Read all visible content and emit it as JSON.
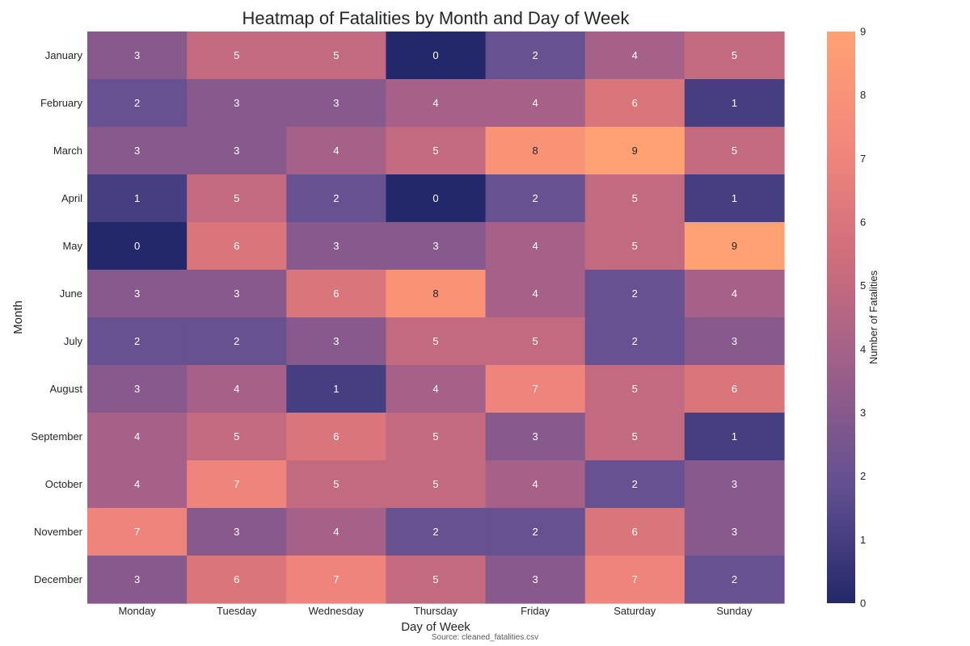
{
  "chart_data": {
    "type": "heatmap",
    "title": "Heatmap of Fatalities by Month and Day of Week",
    "xlabel": "Day of Week",
    "ylabel": "Month",
    "x": [
      "Monday",
      "Tuesday",
      "Wednesday",
      "Thursday",
      "Friday",
      "Saturday",
      "Sunday"
    ],
    "y": [
      "January",
      "February",
      "March",
      "April",
      "May",
      "June",
      "July",
      "August",
      "September",
      "October",
      "November",
      "December"
    ],
    "values": [
      [
        3,
        5,
        5,
        0,
        2,
        4,
        5
      ],
      [
        2,
        3,
        3,
        4,
        4,
        6,
        1
      ],
      [
        3,
        3,
        4,
        5,
        8,
        9,
        5
      ],
      [
        1,
        5,
        2,
        0,
        2,
        5,
        1
      ],
      [
        0,
        6,
        3,
        3,
        4,
        5,
        9
      ],
      [
        3,
        3,
        6,
        8,
        4,
        2,
        4
      ],
      [
        2,
        2,
        3,
        5,
        5,
        2,
        3
      ],
      [
        3,
        4,
        1,
        4,
        7,
        5,
        6
      ],
      [
        4,
        5,
        6,
        5,
        3,
        5,
        1
      ],
      [
        4,
        7,
        5,
        5,
        4,
        2,
        3
      ],
      [
        7,
        3,
        4,
        2,
        2,
        6,
        3
      ],
      [
        3,
        6,
        7,
        5,
        3,
        7,
        2
      ]
    ],
    "colorbar": {
      "label": "Number of Fatalities",
      "range": [
        0,
        9
      ],
      "ticks": [
        "0",
        "1",
        "2",
        "3",
        "4",
        "5",
        "6",
        "7",
        "8",
        "9"
      ]
    },
    "colormap": [
      "#23286a",
      "#614f91",
      "#9a5e8a",
      "#cd6d7c",
      "#f2877c",
      "#ffa173"
    ],
    "annotated": true,
    "grid": false
  },
  "source_note": "Source: cleaned_fatalities.csv"
}
